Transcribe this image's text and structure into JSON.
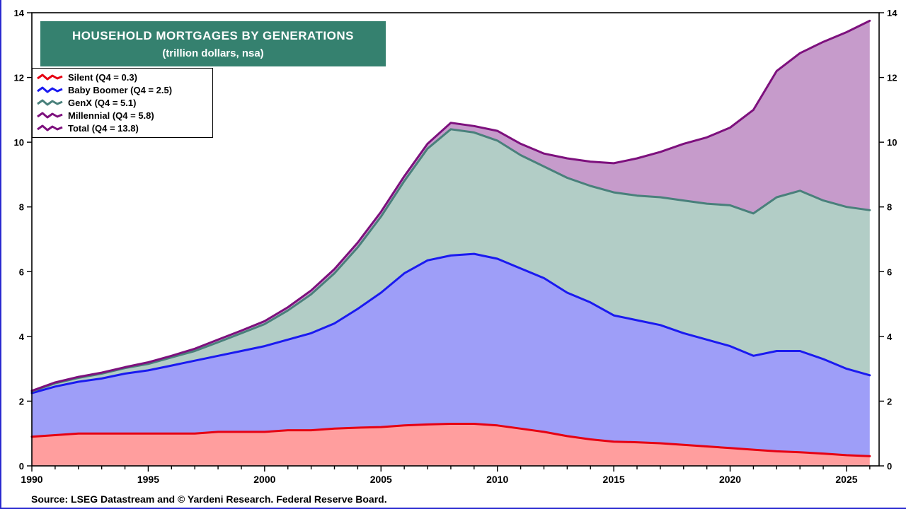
{
  "chart_data": {
    "type": "area",
    "stacked": true,
    "title": "HOUSEHOLD MORTGAGES BY GENERATIONS",
    "subtitle": "(trillion dollars, nsa)",
    "banner_color": "#35816f",
    "grid": false,
    "legend_position": "top-left",
    "xlim": [
      1990,
      2026.4
    ],
    "ylim": [
      0,
      14
    ],
    "y_step": 2,
    "x_label_ticks": [
      1990,
      1995,
      2000,
      2005,
      2010,
      2015,
      2020,
      2025
    ],
    "x": [
      1990,
      1991,
      1992,
      1993,
      1994,
      1995,
      1996,
      1997,
      1998,
      1999,
      2000,
      2001,
      2002,
      2003,
      2004,
      2005,
      2006,
      2007,
      2008,
      2009,
      2010,
      2011,
      2012,
      2013,
      2014,
      2015,
      2016,
      2017,
      2018,
      2019,
      2020,
      2021,
      2022,
      2023,
      2024,
      2025,
      2026
    ],
    "series": [
      {
        "name": "Silent",
        "legend": "Silent (Q4 = 0.3)",
        "line_color": "#e60012",
        "fill_color": "#ff9e9e",
        "values": [
          0.9,
          0.95,
          1.0,
          1.0,
          1.0,
          1.0,
          1.0,
          1.0,
          1.05,
          1.05,
          1.05,
          1.1,
          1.1,
          1.15,
          1.18,
          1.2,
          1.25,
          1.28,
          1.3,
          1.3,
          1.25,
          1.15,
          1.05,
          0.92,
          0.82,
          0.75,
          0.73,
          0.7,
          0.65,
          0.6,
          0.55,
          0.5,
          0.45,
          0.42,
          0.38,
          0.33,
          0.3
        ]
      },
      {
        "name": "Baby Boomer",
        "legend": "Baby Boomer (Q4 = 2.5)",
        "line_color": "#1a1af0",
        "fill_color": "#9e9ef8",
        "values": [
          1.35,
          1.5,
          1.6,
          1.7,
          1.85,
          1.95,
          2.1,
          2.25,
          2.35,
          2.5,
          2.65,
          2.8,
          3.0,
          3.25,
          3.67,
          4.15,
          4.7,
          5.07,
          5.2,
          5.25,
          5.15,
          4.95,
          4.75,
          4.43,
          4.23,
          3.9,
          3.77,
          3.65,
          3.45,
          3.3,
          3.15,
          2.9,
          3.1,
          3.13,
          2.92,
          2.67,
          2.5
        ]
      },
      {
        "name": "GenX",
        "legend": "GenX (Q4 = 5.1)",
        "line_color": "#49807b",
        "fill_color": "#b2cdc6",
        "values": [
          0.05,
          0.1,
          0.12,
          0.15,
          0.17,
          0.2,
          0.25,
          0.3,
          0.42,
          0.55,
          0.68,
          0.9,
          1.2,
          1.55,
          1.9,
          2.35,
          2.85,
          3.45,
          3.9,
          3.75,
          3.65,
          3.5,
          3.45,
          3.55,
          3.6,
          3.8,
          3.85,
          3.95,
          4.1,
          4.2,
          4.35,
          4.4,
          4.75,
          4.95,
          4.9,
          5.0,
          5.1
        ]
      },
      {
        "name": "Millennial",
        "legend": "Millennial (Q4 = 5.8)",
        "line_color": "#7d107d",
        "fill_color": "#c69bcb",
        "values": [
          0.02,
          0.03,
          0.03,
          0.03,
          0.03,
          0.05,
          0.05,
          0.07,
          0.08,
          0.08,
          0.09,
          0.1,
          0.12,
          0.13,
          0.15,
          0.15,
          0.15,
          0.15,
          0.2,
          0.2,
          0.3,
          0.35,
          0.4,
          0.6,
          0.75,
          0.9,
          1.15,
          1.4,
          1.75,
          2.05,
          2.4,
          3.2,
          3.9,
          4.25,
          4.9,
          5.4,
          5.85
        ]
      }
    ],
    "total": {
      "name": "Total",
      "legend": "Total (Q4 = 13.8)",
      "line_color": "#7d107d"
    }
  },
  "footer": {
    "source": "Source: LSEG Datastream and © Yardeni Research. Federal Reserve Board."
  }
}
